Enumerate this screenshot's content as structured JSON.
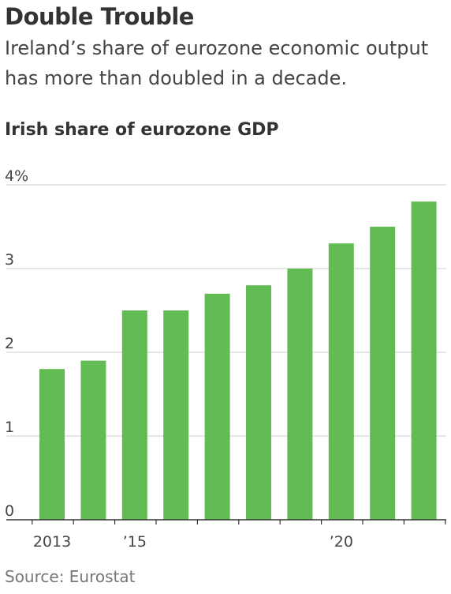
{
  "headline": "Double Trouble",
  "subhead": "Ireland’s share of eurozone economic output has more than doubled in a decade.",
  "source": "Source: Eurostat",
  "colors": {
    "bar": "#63bb53",
    "grid": "#d8d8d8",
    "axis": "#333333"
  },
  "chart_data": {
    "type": "bar",
    "title": "Irish share of eurozone GDP",
    "categories": [
      "2013",
      "2014",
      "2015",
      "2016",
      "2017",
      "2018",
      "2019",
      "2020",
      "2021",
      "2022"
    ],
    "values": [
      1.8,
      1.9,
      2.5,
      2.5,
      2.7,
      2.8,
      3.0,
      3.3,
      3.5,
      3.8
    ],
    "ylim": [
      0,
      4
    ],
    "y_ticks": [
      {
        "value": 0,
        "label": "0"
      },
      {
        "value": 1,
        "label": "1"
      },
      {
        "value": 2,
        "label": "2"
      },
      {
        "value": 3,
        "label": "3"
      },
      {
        "value": 4,
        "label": "4%"
      }
    ],
    "x_tick_labels": [
      {
        "category": "2013",
        "label": "2013"
      },
      {
        "category": "2015",
        "label": "’15"
      },
      {
        "category": "2020",
        "label": "’20"
      }
    ],
    "grid": true
  }
}
